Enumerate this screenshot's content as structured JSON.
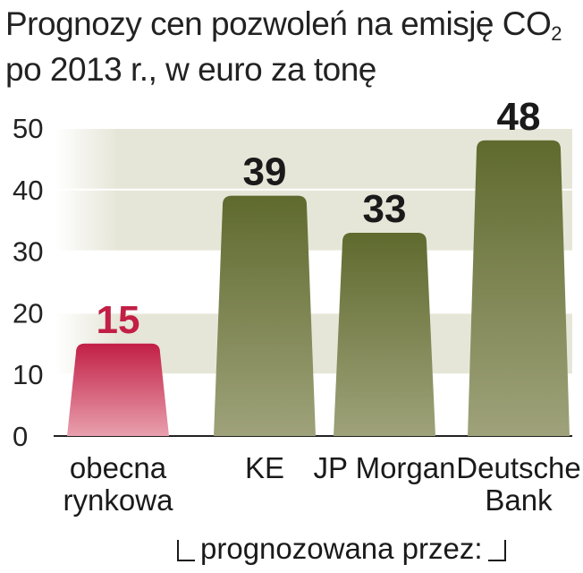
{
  "title_line1": "Prognozy cen pozwoleń na emisję CO",
  "title_subscript": "2",
  "title_line2": "po 2013 r., w euro za tonę",
  "footer": "prognozowana przez:",
  "colors": {
    "current_top": "#c21f45",
    "current_bottom": "#e8a0ae",
    "forecast_top": "#5f6a2e",
    "forecast_bottom": "#9fa27a",
    "current_label": "#c21f45",
    "forecast_label": "#1a1a1a",
    "band": "#e6e6d8",
    "grid": "#ffffff"
  },
  "chart_data": {
    "type": "bar",
    "title": "Prognozy cen pozwoleń na emisję CO2 po 2013 r., w euro za tonę",
    "xlabel": "",
    "ylabel": "",
    "ylim": [
      0,
      50
    ],
    "yticks": [
      "0",
      "10",
      "20",
      "30",
      "40",
      "50"
    ],
    "categories": [
      [
        "obecna",
        "rynkowa"
      ],
      [
        "KE"
      ],
      [
        "JP Morgan"
      ],
      [
        "Deutsche",
        "Bank"
      ]
    ],
    "values": [
      15,
      39,
      33,
      48
    ],
    "value_labels": [
      "15",
      "39",
      "33",
      "48"
    ],
    "bar_kind": [
      "current",
      "forecast",
      "forecast",
      "forecast"
    ]
  }
}
